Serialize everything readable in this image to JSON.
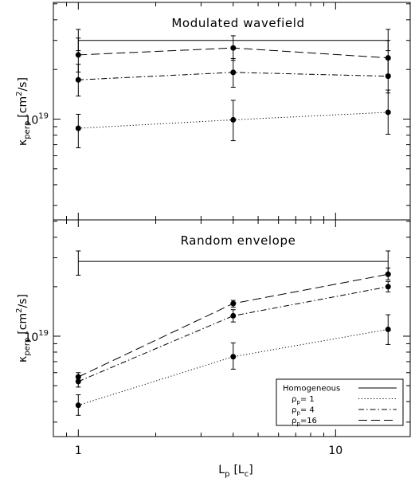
{
  "figure": {
    "x_label_main": "L",
    "x_label_sub": "p",
    "x_label_unit_open": "[L",
    "x_label_unit_sub": "c",
    "x_label_unit_close": "]",
    "y_label_symbol": "κ",
    "y_label_sub": "perp",
    "y_label_unit": "[cm",
    "y_label_unit_sup": "2",
    "y_label_unit_tail": "/s]"
  },
  "chart_data": [
    {
      "type": "line",
      "title": "Modulated wavefield",
      "x_scale": "log",
      "y_scale": "log",
      "xlim": [
        0.8,
        19.5
      ],
      "ylim": [
        2.45e+18,
        5.1e+19
      ],
      "x_ticks": [
        {
          "value": 1,
          "label": "1"
        },
        {
          "value": 10,
          "label": "10"
        }
      ],
      "y_ticks": [
        {
          "value": 1e+19,
          "label_base": "10",
          "label_exp": "19"
        }
      ],
      "x": [
        1,
        4,
        16
      ],
      "series": [
        {
          "name": "Homogeneous",
          "style": "solid",
          "markers": false,
          "values": [
            3e+19,
            3e+19,
            3e+19
          ],
          "err": [
            [
              2.6e+19,
              3.5e+19
            ],
            null,
            [
              2.6e+19,
              3.5e+19
            ]
          ]
        },
        {
          "name": "ρ_p= 1",
          "style": "dotted",
          "markers": true,
          "values": [
            8.8e+18,
            9.9e+18,
            1.1e+19
          ],
          "err": [
            [
              6.7e+18,
              1.07e+19
            ],
            [
              7.4e+18,
              1.3e+19
            ],
            [
              8.1e+18,
              1.5e+19
            ]
          ]
        },
        {
          "name": "ρ_p= 4",
          "style": "dashdot",
          "markers": true,
          "values": [
            1.73e+19,
            1.92e+19,
            1.82e+19
          ],
          "err": [
            [
              1.38e+19,
              2.15e+19
            ],
            [
              1.56e+19,
              2.33e+19
            ],
            [
              1.44e+19,
              2.3e+19
            ]
          ]
        },
        {
          "name": "ρ_p=16",
          "style": "dashed",
          "markers": true,
          "values": [
            2.45e+19,
            2.7e+19,
            2.35e+19
          ],
          "err": [
            [
              1.93e+19,
              3.1e+19
            ],
            [
              2.27e+19,
              3.2e+19
            ],
            [
              1.87e+19,
              3e+19
            ]
          ]
        }
      ],
      "legend": null
    },
    {
      "type": "line",
      "title": "Random envelope",
      "x_scale": "log",
      "y_scale": "log",
      "xlim": [
        0.8,
        19.5
      ],
      "ylim": [
        2.45e+18,
        5.1e+19
      ],
      "x_ticks": [
        {
          "value": 1,
          "label": "1"
        },
        {
          "value": 10,
          "label": "10"
        }
      ],
      "y_ticks": [
        {
          "value": 1e+19,
          "label_base": "10",
          "label_exp": "19"
        }
      ],
      "x": [
        1,
        4,
        16
      ],
      "series": [
        {
          "name": "Homogeneous",
          "style": "solid",
          "markers": false,
          "values": [
            2.85e+19,
            2.85e+19,
            2.85e+19
          ],
          "err": [
            [
              2.35e+19,
              3.3e+19
            ],
            null,
            [
              2.35e+19,
              3.3e+19
            ]
          ]
        },
        {
          "name": "ρ_p= 1",
          "style": "dotted",
          "markers": true,
          "values": [
            3.8e+18,
            7.5e+18,
            1.1e+19
          ],
          "err": [
            [
              3.3e+18,
              4.4e+18
            ],
            [
              6.3e+18,
              9.1e+18
            ],
            [
              8.9e+18,
              1.35e+19
            ]
          ]
        },
        {
          "name": "ρ_p= 4",
          "style": "dashdot",
          "markers": true,
          "values": [
            5.3e+18,
            1.33e+19,
            2e+19
          ],
          "err": [
            [
              4.9e+18,
              5.6e+18
            ],
            [
              1.22e+19,
              1.45e+19
            ],
            [
              1.86e+19,
              2.15e+19
            ]
          ]
        },
        {
          "name": "ρ_p=16",
          "style": "dashed",
          "markers": true,
          "values": [
            5.65e+18,
            1.58e+19,
            2.38e+19
          ],
          "err": [
            [
              5.4e+18,
              6e+18
            ],
            [
              1.5e+19,
              1.65e+19
            ],
            [
              2.2e+19,
              2.6e+19
            ]
          ]
        }
      ],
      "legend": {
        "placement": "bottom-right",
        "entries": [
          {
            "label": "Homogeneous",
            "style": "solid"
          },
          {
            "label_symbol": "ρ",
            "label_sub": "p",
            "label_text": "= 1",
            "style": "dotted"
          },
          {
            "label_symbol": "ρ",
            "label_sub": "p",
            "label_text": "= 4",
            "style": "dashdot"
          },
          {
            "label_symbol": "ρ",
            "label_sub": "p",
            "label_text": "=16",
            "style": "dashed"
          }
        ]
      }
    }
  ]
}
